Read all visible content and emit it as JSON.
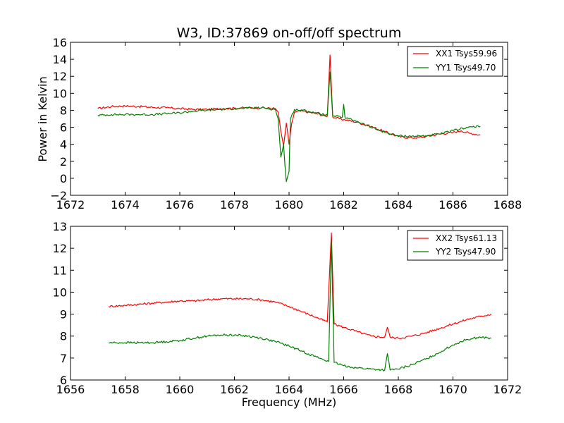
{
  "chart_data": [
    {
      "type": "line",
      "title": "W3, ID:37869 on-off/off spectrum",
      "xlabel": "",
      "ylabel": "Power in Kelvin",
      "xlim": [
        1672,
        1688
      ],
      "ylim": [
        -2,
        16
      ],
      "xticks": [
        "1672",
        "1674",
        "1676",
        "1678",
        "1680",
        "1682",
        "1684",
        "1686",
        "1688"
      ],
      "yticks": [
        "−2",
        "0",
        "2",
        "4",
        "6",
        "8",
        "10",
        "12",
        "14",
        "16"
      ],
      "grid": false,
      "legend_position": "top-right",
      "series": [
        {
          "name": "XX1 Tsys59.96",
          "color": "#ff0000",
          "points": [
            [
              1673.0,
              8.2
            ],
            [
              1673.5,
              8.45
            ],
            [
              1674.0,
              8.5
            ],
            [
              1674.5,
              8.45
            ],
            [
              1675.0,
              8.35
            ],
            [
              1675.5,
              8.3
            ],
            [
              1676.0,
              8.2
            ],
            [
              1676.5,
              8.1
            ],
            [
              1677.0,
              8.1
            ],
            [
              1677.5,
              8.2
            ],
            [
              1678.0,
              8.25
            ],
            [
              1678.5,
              8.3
            ],
            [
              1679.0,
              8.3
            ],
            [
              1679.5,
              8.2
            ],
            [
              1679.6,
              7.8
            ],
            [
              1679.7,
              5.5
            ],
            [
              1679.8,
              3.8
            ],
            [
              1679.9,
              6.5
            ],
            [
              1680.0,
              4.0
            ],
            [
              1680.1,
              6.5
            ],
            [
              1680.2,
              7.8
            ],
            [
              1680.5,
              7.9
            ],
            [
              1681.0,
              7.6
            ],
            [
              1681.4,
              7.3
            ],
            [
              1681.5,
              14.5
            ],
            [
              1681.6,
              7.2
            ],
            [
              1682.0,
              6.9
            ],
            [
              1682.5,
              6.6
            ],
            [
              1683.0,
              6.1
            ],
            [
              1683.5,
              5.5
            ],
            [
              1684.0,
              4.9
            ],
            [
              1684.5,
              4.75
            ],
            [
              1685.0,
              4.9
            ],
            [
              1685.5,
              5.2
            ],
            [
              1686.0,
              5.4
            ],
            [
              1686.3,
              5.6
            ],
            [
              1686.6,
              5.3
            ],
            [
              1687.0,
              5.1
            ]
          ]
        },
        {
          "name": "YY1 Tsys49.70",
          "color": "#008000",
          "points": [
            [
              1673.0,
              7.4
            ],
            [
              1673.5,
              7.5
            ],
            [
              1674.0,
              7.5
            ],
            [
              1674.5,
              7.5
            ],
            [
              1675.0,
              7.5
            ],
            [
              1675.5,
              7.6
            ],
            [
              1676.0,
              7.7
            ],
            [
              1676.5,
              7.9
            ],
            [
              1677.0,
              8.0
            ],
            [
              1677.5,
              8.1
            ],
            [
              1678.0,
              8.2
            ],
            [
              1678.5,
              8.25
            ],
            [
              1679.0,
              8.3
            ],
            [
              1679.5,
              8.1
            ],
            [
              1679.6,
              7.0
            ],
            [
              1679.7,
              2.5
            ],
            [
              1679.8,
              4.0
            ],
            [
              1679.85,
              1.5
            ],
            [
              1679.9,
              -0.4
            ],
            [
              1680.0,
              0.8
            ],
            [
              1680.05,
              7.0
            ],
            [
              1680.2,
              8.1
            ],
            [
              1680.5,
              8.0
            ],
            [
              1681.0,
              7.7
            ],
            [
              1681.4,
              7.4
            ],
            [
              1681.5,
              12.5
            ],
            [
              1681.6,
              7.3
            ],
            [
              1681.95,
              7.2
            ],
            [
              1682.0,
              8.7
            ],
            [
              1682.05,
              7.1
            ],
            [
              1682.5,
              6.7
            ],
            [
              1683.0,
              6.0
            ],
            [
              1683.5,
              5.4
            ],
            [
              1684.0,
              5.0
            ],
            [
              1684.5,
              4.95
            ],
            [
              1685.0,
              5.0
            ],
            [
              1685.5,
              5.2
            ],
            [
              1686.0,
              5.6
            ],
            [
              1686.5,
              6.0
            ],
            [
              1687.0,
              6.1
            ]
          ]
        }
      ]
    },
    {
      "type": "line",
      "title": "",
      "xlabel": "Frequency (MHz)",
      "ylabel": "",
      "xlim": [
        1656,
        1672
      ],
      "ylim": [
        6,
        13
      ],
      "xticks": [
        "1656",
        "1658",
        "1660",
        "1662",
        "1664",
        "1666",
        "1668",
        "1670",
        "1672"
      ],
      "yticks": [
        "6",
        "7",
        "8",
        "9",
        "10",
        "11",
        "12",
        "13"
      ],
      "grid": false,
      "legend_position": "top-right",
      "series": [
        {
          "name": "XX2 Tsys61.13",
          "color": "#ff0000",
          "points": [
            [
              1657.4,
              9.35
            ],
            [
              1658.0,
              9.4
            ],
            [
              1658.5,
              9.45
            ],
            [
              1659.0,
              9.5
            ],
            [
              1659.5,
              9.55
            ],
            [
              1660.0,
              9.6
            ],
            [
              1660.5,
              9.6
            ],
            [
              1661.0,
              9.65
            ],
            [
              1661.5,
              9.7
            ],
            [
              1662.0,
              9.7
            ],
            [
              1662.5,
              9.7
            ],
            [
              1663.0,
              9.65
            ],
            [
              1663.5,
              9.55
            ],
            [
              1664.0,
              9.35
            ],
            [
              1664.5,
              9.1
            ],
            [
              1665.0,
              8.85
            ],
            [
              1665.4,
              8.65
            ],
            [
              1665.55,
              12.7
            ],
            [
              1665.65,
              8.55
            ],
            [
              1666.0,
              8.4
            ],
            [
              1666.5,
              8.2
            ],
            [
              1667.0,
              8.0
            ],
            [
              1667.5,
              7.95
            ],
            [
              1667.6,
              8.4
            ],
            [
              1667.7,
              7.95
            ],
            [
              1668.0,
              7.9
            ],
            [
              1668.5,
              8.0
            ],
            [
              1669.0,
              8.15
            ],
            [
              1669.5,
              8.35
            ],
            [
              1670.0,
              8.55
            ],
            [
              1670.5,
              8.75
            ],
            [
              1671.0,
              8.9
            ],
            [
              1671.4,
              9.0
            ]
          ]
        },
        {
          "name": "YY2 Tsys47.90",
          "color": "#008000",
          "points": [
            [
              1657.4,
              7.7
            ],
            [
              1658.0,
              7.7
            ],
            [
              1658.5,
              7.7
            ],
            [
              1659.0,
              7.7
            ],
            [
              1659.5,
              7.75
            ],
            [
              1660.0,
              7.8
            ],
            [
              1660.5,
              7.9
            ],
            [
              1661.0,
              8.0
            ],
            [
              1661.5,
              8.05
            ],
            [
              1662.0,
              8.05
            ],
            [
              1662.5,
              8.0
            ],
            [
              1663.0,
              7.9
            ],
            [
              1663.5,
              7.75
            ],
            [
              1664.0,
              7.55
            ],
            [
              1664.5,
              7.3
            ],
            [
              1665.0,
              7.05
            ],
            [
              1665.45,
              6.85
            ],
            [
              1665.55,
              12.3
            ],
            [
              1665.65,
              6.8
            ],
            [
              1666.0,
              6.65
            ],
            [
              1666.5,
              6.55
            ],
            [
              1667.0,
              6.5
            ],
            [
              1667.5,
              6.45
            ],
            [
              1667.6,
              7.2
            ],
            [
              1667.7,
              6.45
            ],
            [
              1668.0,
              6.5
            ],
            [
              1668.5,
              6.7
            ],
            [
              1669.0,
              6.95
            ],
            [
              1669.5,
              7.25
            ],
            [
              1670.0,
              7.6
            ],
            [
              1670.5,
              7.85
            ],
            [
              1671.0,
              7.95
            ],
            [
              1671.4,
              7.9
            ]
          ]
        }
      ]
    }
  ]
}
